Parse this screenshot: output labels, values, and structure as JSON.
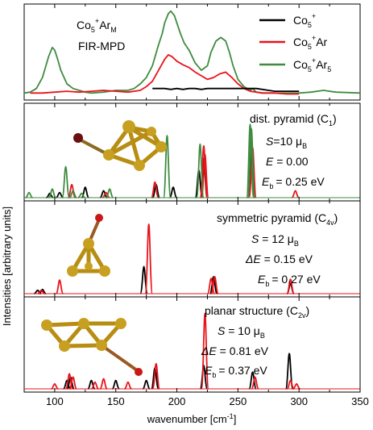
{
  "chart_data": {
    "type": "line",
    "xlabel": "wavenumber [cm",
    "xlabel_sup": "-1",
    "xlabel_end": "]",
    "ylabel": "Intensities [arbitrary units]",
    "xlim": [
      75,
      350
    ],
    "xticks": [
      100,
      150,
      200,
      250,
      300,
      350
    ],
    "colors": {
      "Co5+": "#000000",
      "Co5+Ar": "#e8141b",
      "Co5+Ar5": "#3f8b3f",
      "cluster_gold": "#c8a021",
      "argon_red": "#a01818"
    },
    "panels": [
      {
        "id": "experiment",
        "label_main": "Co",
        "label_sub": "5",
        "label_sup": "+",
        "label_tail": "Ar",
        "label_tail_sub": "M",
        "method": "FIR-MPD",
        "legend": [
          {
            "prefix": "Co",
            "sub": "5",
            "sup": "+",
            "suffix": "",
            "suffix_sub": "",
            "color": "#000000"
          },
          {
            "prefix": "Co",
            "sub": "5",
            "sup": "+",
            "suffix": "Ar",
            "suffix_sub": "",
            "color": "#e8141b"
          },
          {
            "prefix": "Co",
            "sub": "5",
            "sup": "+",
            "suffix": "Ar",
            "suffix_sub": "5",
            "color": "#3f8b3f"
          }
        ],
        "series": [
          {
            "name": "Co5+Ar5",
            "color": "#3f8b3f",
            "x": [
              75,
              80,
              85,
              90,
              95,
              98,
              100,
              102,
              105,
              110,
              115,
              120,
              125,
              130,
              140,
              150,
              160,
              165,
              170,
              175,
              180,
              185,
              188,
              190,
              193,
              195,
              198,
              200,
              203,
              206,
              210,
              215,
              220,
              225,
              228,
              232,
              236,
              240,
              243,
              246,
              250,
              255,
              260,
              262,
              265,
              270,
              280,
              290,
              300,
              310,
              320,
              330,
              350
            ],
            "y": [
              0.05,
              0.06,
              0.1,
              0.22,
              0.45,
              0.55,
              0.52,
              0.44,
              0.3,
              0.15,
              0.1,
              0.08,
              0.06,
              0.05,
              0.06,
              0.08,
              0.08,
              0.1,
              0.15,
              0.22,
              0.35,
              0.58,
              0.7,
              0.82,
              0.92,
              0.95,
              0.9,
              0.82,
              0.7,
              0.6,
              0.52,
              0.38,
              0.3,
              0.35,
              0.5,
              0.62,
              0.66,
              0.62,
              0.5,
              0.35,
              0.2,
              0.12,
              0.08,
              0.1,
              0.06,
              0.05,
              0.05,
              0.05,
              0.05,
              0.06,
              0.08,
              0.06,
              0.05
            ]
          },
          {
            "name": "Co5+Ar",
            "color": "#e8141b",
            "x": [
              80,
              90,
              100,
              110,
              120,
              130,
              140,
              150,
              160,
              170,
              175,
              180,
              185,
              190,
              193,
              196,
              200,
              205,
              210,
              215,
              220,
              225,
              230,
              235,
              240,
              245,
              250,
              255,
              260,
              265,
              270,
              280,
              290,
              300
            ],
            "y": [
              0.05,
              0.05,
              0.06,
              0.07,
              0.06,
              0.07,
              0.08,
              0.07,
              0.06,
              0.08,
              0.12,
              0.18,
              0.3,
              0.42,
              0.47,
              0.45,
              0.4,
              0.36,
              0.33,
              0.28,
              0.24,
              0.2,
              0.22,
              0.26,
              0.28,
              0.22,
              0.15,
              0.1,
              0.07,
              0.06,
              0.05,
              0.05,
              0.04,
              0.04
            ]
          },
          {
            "name": "Co5+",
            "color": "#000000",
            "x": [
              180,
              185,
              190,
              195,
              200,
              205,
              210,
              215,
              220,
              225,
              230,
              235,
              240,
              245,
              250,
              255,
              260,
              265,
              270,
              275,
              280,
              285,
              290,
              295,
              300
            ],
            "y": [
              0.1,
              0.1,
              0.1,
              0.09,
              0.1,
              0.09,
              0.1,
              0.1,
              0.09,
              0.1,
              0.1,
              0.1,
              0.1,
              0.1,
              0.1,
              0.1,
              0.1,
              0.1,
              0.09,
              0.08,
              0.07,
              0.07,
              0.07,
              0.07,
              0.07
            ]
          }
        ]
      },
      {
        "id": "dist",
        "title": "dist. pyramid (C",
        "title_sub": "1",
        "title_end": ")",
        "spin_label": "S",
        "spin_value": "=10 μ",
        "spin_sub": "B",
        "energy_label": "E",
        "energy_value": " = 0.00",
        "eb_label": "E",
        "eb_sub": "b",
        "eb_value": "= 0.25 eV",
        "sticks": [
          {
            "color": "#000000",
            "x": [
              96,
              104,
              125,
              140,
              183,
              197,
              218,
              222,
              261
            ],
            "y": [
              0.05,
              0.06,
              0.12,
              0.08,
              0.15,
              0.12,
              0.32,
              0.45,
              0.55
            ]
          },
          {
            "color": "#e8141b",
            "x": [
              114,
              142,
              182,
              222,
              223,
              262,
              297
            ],
            "y": [
              0.15,
              0.06,
              0.18,
              0.6,
              0.5,
              0.58,
              0.08
            ]
          },
          {
            "color": "#3f8b3f",
            "x": [
              79,
              98,
              109,
              115,
              122,
              145,
              192,
              219,
              260,
              261
            ],
            "y": [
              0.06,
              0.1,
              0.36,
              0.08,
              0.05,
              0.1,
              0.72,
              0.62,
              0.85,
              0.8
            ]
          }
        ]
      },
      {
        "id": "sym",
        "title": "symmetric pyramid (C",
        "title_sub": "4v",
        "title_end": ")",
        "spin_label": "S",
        "spin_value": " = 12 μ",
        "spin_sub": "B",
        "energy_label": "ΔE",
        "energy_value": " = 0.15 eV",
        "eb_label": "E",
        "eb_sub": "b",
        "eb_value": "= 0.27 eV",
        "sticks": [
          {
            "color": "#000000",
            "x": [
              86,
              90,
              173,
              230,
              293
            ],
            "y": [
              0.04,
              0.05,
              0.32,
              0.2,
              0.12
            ]
          },
          {
            "color": "#e8141b",
            "x": [
              89,
              104,
              177,
              228,
              231,
              293
            ],
            "y": [
              0.04,
              0.16,
              0.82,
              0.18,
              0.2,
              0.17
            ]
          }
        ]
      },
      {
        "id": "planar",
        "title": "planar structure (C",
        "title_sub": "2v",
        "title_end": ")",
        "spin_label": "S",
        "spin_value": " = 10 μ",
        "spin_sub": "B",
        "energy_label": "ΔE",
        "energy_value": " = 0.81 eV",
        "eb_label": "E",
        "eb_sub": "b",
        "eb_value": "= 0.37 eV",
        "sticks": [
          {
            "color": "#000000",
            "x": [
              110,
              113,
              130,
              150,
              175,
              182,
              222,
              262,
              292
            ],
            "y": [
              0.1,
              0.14,
              0.1,
              0.1,
              0.1,
              0.25,
              0.28,
              0.2,
              0.42
            ]
          },
          {
            "color": "#e8141b",
            "x": [
              100,
              112,
              115,
              133,
              140,
              160,
              183,
              223,
              264,
              293,
              298
            ],
            "y": [
              0.06,
              0.18,
              0.14,
              0.08,
              0.12,
              0.08,
              0.3,
              0.9,
              0.14,
              0.1,
              0.06
            ]
          }
        ]
      }
    ]
  }
}
